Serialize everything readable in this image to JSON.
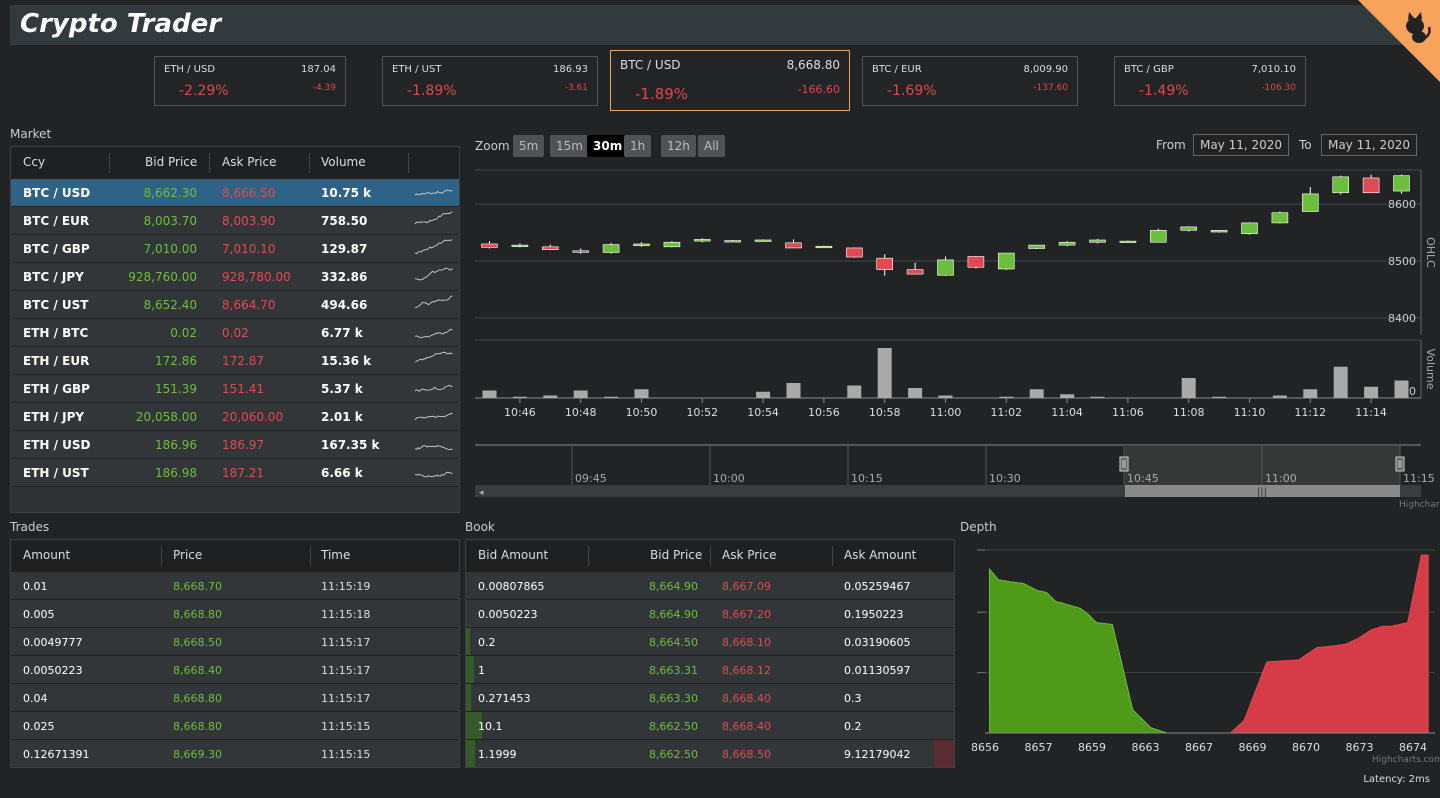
{
  "app": {
    "title": "Crypto Trader"
  },
  "tickers": [
    {
      "pair": "ETH / USD",
      "price": "187.04",
      "pct": "-2.29%",
      "change": "-4.39"
    },
    {
      "pair": "ETH / UST",
      "price": "186.93",
      "pct": "-1.89%",
      "change": "-3.61"
    },
    {
      "pair": "BTC / USD",
      "price": "8,668.80",
      "pct": "-1.89%",
      "change": "-166.60",
      "active": true
    },
    {
      "pair": "BTC / EUR",
      "price": "8,009.90",
      "pct": "-1.69%",
      "change": "-137.60"
    },
    {
      "pair": "BTC / GBP",
      "price": "7,010.10",
      "pct": "-1.49%",
      "change": "-106.30"
    }
  ],
  "market": {
    "label": "Market",
    "columns": {
      "ccy": "Ccy",
      "bid": "Bid Price",
      "ask": "Ask Price",
      "volume": "Volume"
    },
    "rows": [
      {
        "ccy": "BTC / USD",
        "bid": "8,662.30",
        "ask": "8,666.50",
        "volume": "10.75 k"
      },
      {
        "ccy": "BTC / EUR",
        "bid": "8,003.70",
        "ask": "8,003.90",
        "volume": "758.50"
      },
      {
        "ccy": "BTC / GBP",
        "bid": "7,010.00",
        "ask": "7,010.10",
        "volume": "129.87"
      },
      {
        "ccy": "BTC / JPY",
        "bid": "928,760.00",
        "ask": "928,780.00",
        "volume": "332.86"
      },
      {
        "ccy": "BTC / UST",
        "bid": "8,652.40",
        "ask": "8,664.70",
        "volume": "494.66"
      },
      {
        "ccy": "ETH / BTC",
        "bid": "0.02",
        "ask": "0.02",
        "volume": "6.77 k"
      },
      {
        "ccy": "ETH / EUR",
        "bid": "172.86",
        "ask": "172.87",
        "volume": "15.36 k"
      },
      {
        "ccy": "ETH / GBP",
        "bid": "151.39",
        "ask": "151.41",
        "volume": "5.37 k"
      },
      {
        "ccy": "ETH / JPY",
        "bid": "20,058.00",
        "ask": "20,060.00",
        "volume": "2.01 k"
      },
      {
        "ccy": "ETH / USD",
        "bid": "186.96",
        "ask": "186.97",
        "volume": "167.35 k"
      },
      {
        "ccy": "ETH / UST",
        "bid": "186.98",
        "ask": "187.21",
        "volume": "6.66 k"
      }
    ]
  },
  "chart": {
    "zoom_label": "Zoom",
    "zoom_buttons": [
      "5m",
      "15m",
      "30m",
      "1h",
      "12h",
      "All"
    ],
    "zoom_selected": "30m",
    "from_label": "From",
    "from_value": "May 11, 2020",
    "to_label": "To",
    "to_value": "May 11, 2020",
    "credits": "Highcharts.com"
  },
  "chart_data": [
    {
      "type": "candlestick",
      "ylabel": "OHLC",
      "ylim": [
        8370,
        8660
      ],
      "yticks": [
        8400,
        8500,
        8600
      ],
      "xticks": [
        "10:46",
        "10:48",
        "10:50",
        "10:52",
        "10:54",
        "10:56",
        "10:58",
        "11:00",
        "11:02",
        "11:04",
        "11:06",
        "11:08",
        "11:10",
        "11:12",
        "11:14"
      ],
      "candles": [
        [
          8530,
          8535,
          8522,
          8524
        ],
        [
          8527,
          8531,
          8524,
          8528
        ],
        [
          8525,
          8529,
          8519,
          8520
        ],
        [
          8518,
          8522,
          8513,
          8516
        ],
        [
          8515,
          8532,
          8513,
          8529
        ],
        [
          8527,
          8533,
          8525,
          8530
        ],
        [
          8525,
          8535,
          8524,
          8533
        ],
        [
          8535,
          8540,
          8533,
          8538
        ],
        [
          8535,
          8537,
          8534,
          8536
        ],
        [
          8536,
          8538,
          8535,
          8537
        ],
        [
          8532,
          8538,
          8524,
          8523
        ],
        [
          8525,
          8527,
          8524,
          8526
        ],
        [
          8523,
          8524,
          8506,
          8507
        ],
        [
          8505,
          8512,
          8474,
          8485
        ],
        [
          8485,
          8497,
          8478,
          8477
        ],
        [
          8475,
          8508,
          8474,
          8502
        ],
        [
          8508,
          8509,
          8487,
          8489
        ],
        [
          8486,
          8514,
          8484,
          8514
        ],
        [
          8522,
          8527,
          8521,
          8528
        ],
        [
          8528,
          8535,
          8526,
          8533
        ],
        [
          8533,
          8539,
          8531,
          8537
        ],
        [
          8533,
          8536,
          8532,
          8535
        ],
        [
          8533,
          8557,
          8533,
          8554
        ],
        [
          8554,
          8561,
          8552,
          8560
        ],
        [
          8551,
          8554,
          8550,
          8554
        ],
        [
          8548,
          8568,
          8546,
          8567
        ],
        [
          8567,
          8587,
          8566,
          8585
        ],
        [
          8587,
          8630,
          8587,
          8618
        ],
        [
          8620,
          8650,
          8617,
          8648
        ],
        [
          8646,
          8652,
          8620,
          8620
        ],
        [
          8623,
          8652,
          8618,
          8650
        ]
      ]
    },
    {
      "type": "bar",
      "ylabel": "Volume",
      "yticks": [
        0
      ],
      "values": [
        6,
        1,
        2,
        6,
        1,
        7,
        0,
        0,
        0,
        5,
        12,
        0,
        10,
        40,
        8,
        2,
        0,
        1,
        7,
        3,
        1,
        0,
        0,
        16,
        1,
        0,
        2,
        7,
        25,
        9,
        14
      ]
    },
    {
      "type": "area",
      "title": "Depth",
      "x_ticks": [
        "8656",
        "8657",
        "8659",
        "8663",
        "8667",
        "8669",
        "8670",
        "8673",
        "8674"
      ],
      "bids": [
        [
          8655.8,
          92
        ],
        [
          8656.2,
          86
        ],
        [
          8656.7,
          85
        ],
        [
          8657.3,
          84
        ],
        [
          8657.9,
          80
        ],
        [
          8658.3,
          79
        ],
        [
          8658.7,
          74
        ],
        [
          8659.0,
          73
        ],
        [
          8659.8,
          70
        ],
        [
          8660.2,
          66
        ],
        [
          8660.5,
          62
        ],
        [
          8661.2,
          61
        ],
        [
          8661.6,
          40
        ],
        [
          8662.1,
          13
        ],
        [
          8662.9,
          3
        ],
        [
          8663.6,
          0
        ]
      ],
      "asks": [
        [
          8666.4,
          0
        ],
        [
          8667.0,
          7
        ],
        [
          8668.0,
          40
        ],
        [
          8669.4,
          41
        ],
        [
          8670.2,
          48
        ],
        [
          8671.0,
          49
        ],
        [
          8671.5,
          50
        ],
        [
          8672.0,
          53
        ],
        [
          8672.6,
          58
        ],
        [
          8673.1,
          60
        ],
        [
          8673.5,
          60
        ],
        [
          8674.2,
          62
        ],
        [
          8674.8,
          100
        ],
        [
          8675.1,
          100
        ]
      ]
    }
  ],
  "navigator": {
    "ticks": [
      "09:45",
      "10:00",
      "10:15",
      "10:30",
      "10:45",
      "11:00",
      "11:15"
    ]
  },
  "trades": {
    "label": "Trades",
    "columns": {
      "amount": "Amount",
      "price": "Price",
      "time": "Time"
    },
    "rows": [
      {
        "amount": "0.01",
        "price": "8,668.70",
        "time": "11:15:19"
      },
      {
        "amount": "0.005",
        "price": "8,668.80",
        "time": "11:15:18"
      },
      {
        "amount": "0.0049777",
        "price": "8,668.50",
        "time": "11:15:17"
      },
      {
        "amount": "0.0050223",
        "price": "8,668.40",
        "time": "11:15:17"
      },
      {
        "amount": "0.04",
        "price": "8,668.80",
        "time": "11:15:17"
      },
      {
        "amount": "0.025",
        "price": "8,668.80",
        "time": "11:15:15"
      },
      {
        "amount": "0.12671391",
        "price": "8,669.30",
        "time": "11:15:15"
      }
    ]
  },
  "book": {
    "label": "Book",
    "columns": {
      "bid_amount": "Bid Amount",
      "bid_price": "Bid Price",
      "ask_price": "Ask Price",
      "ask_amount": "Ask Amount"
    },
    "rows": [
      {
        "bid_amount": "0.00807865",
        "bid_price": "8,664.90",
        "ask_price": "8,667.09",
        "ask_amount": "0.05259467"
      },
      {
        "bid_amount": "0.0050223",
        "bid_price": "8,664.90",
        "ask_price": "8,667.20",
        "ask_amount": "0.1950223"
      },
      {
        "bid_amount": "0.2",
        "bid_price": "8,664.50",
        "ask_price": "8,668.10",
        "ask_amount": "0.03190605"
      },
      {
        "bid_amount": "1",
        "bid_price": "8,663.31",
        "ask_price": "8,668.12",
        "ask_amount": "0.01130597"
      },
      {
        "bid_amount": "0.271453",
        "bid_price": "8,663.30",
        "ask_price": "8,668.40",
        "ask_amount": "0.3"
      },
      {
        "bid_amount": "10.1",
        "bid_price": "8,662.50",
        "ask_price": "8,668.40",
        "ask_amount": "0.2"
      },
      {
        "bid_amount": "1.1999",
        "bid_price": "8,662.50",
        "ask_price": "8,668.50",
        "ask_amount": "9.12179042"
      }
    ]
  },
  "depth": {
    "label": "Depth",
    "credits": "Highcharts.com"
  },
  "status": {
    "latency": "Latency: 2ms"
  },
  "colors": {
    "up": "#6cbf3c",
    "down": "#e04a52",
    "accent": "#f7a35c",
    "selected_row": "#2e6387"
  }
}
